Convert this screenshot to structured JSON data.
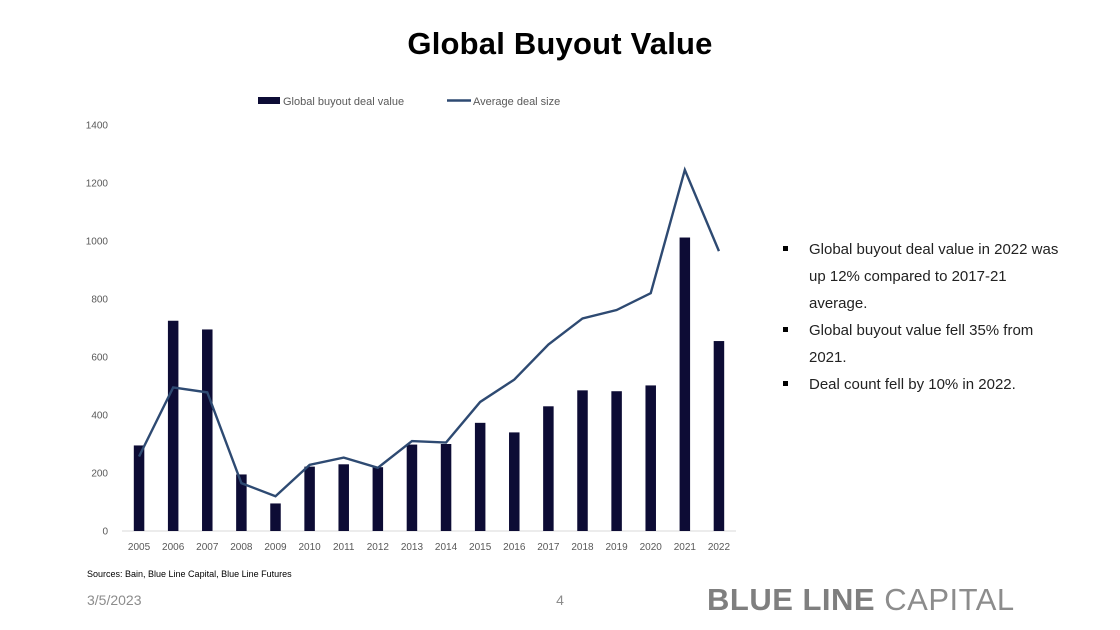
{
  "title": "Global Buyout Value",
  "bullets": [
    "Global buyout deal value in 2022 was up 12% compared to 2017-21 average.",
    "Global buyout value fell 35% from 2021.",
    "Deal count fell by 10% in 2022."
  ],
  "source": "Sources: Bain, Blue Line Capital, Blue Line Futures",
  "date": "3/5/2023",
  "page_number": "4",
  "logo": {
    "strong": "BLUE LINE",
    "light": "CAPITAL"
  },
  "colors": {
    "bar": "#0d0c35",
    "line": "#2e4a72",
    "axis": "#d9d9d9",
    "logo": "#8c8c8c"
  },
  "chart_data": {
    "type": "bar",
    "categories": [
      "2005",
      "2006",
      "2007",
      "2008",
      "2009",
      "2010",
      "2011",
      "2012",
      "2013",
      "2014",
      "2015",
      "2016",
      "2017",
      "2018",
      "2019",
      "2020",
      "2021",
      "2022"
    ],
    "series": [
      {
        "name": "Global buyout deal value",
        "type": "bar",
        "values": [
          295,
          725,
          695,
          195,
          95,
          222,
          230,
          220,
          298,
          300,
          373,
          340,
          430,
          485,
          482,
          502,
          1012,
          655
        ]
      },
      {
        "name": "Average deal size",
        "type": "line",
        "values": [
          257,
          495,
          478,
          165,
          120,
          228,
          253,
          218,
          310,
          305,
          445,
          522,
          643,
          733,
          762,
          820,
          1245,
          965
        ]
      }
    ],
    "ylim": [
      0,
      1400
    ],
    "yticks": [
      0,
      200,
      400,
      600,
      800,
      1000,
      1200,
      1400
    ],
    "legend_position": "top",
    "grid": false
  }
}
